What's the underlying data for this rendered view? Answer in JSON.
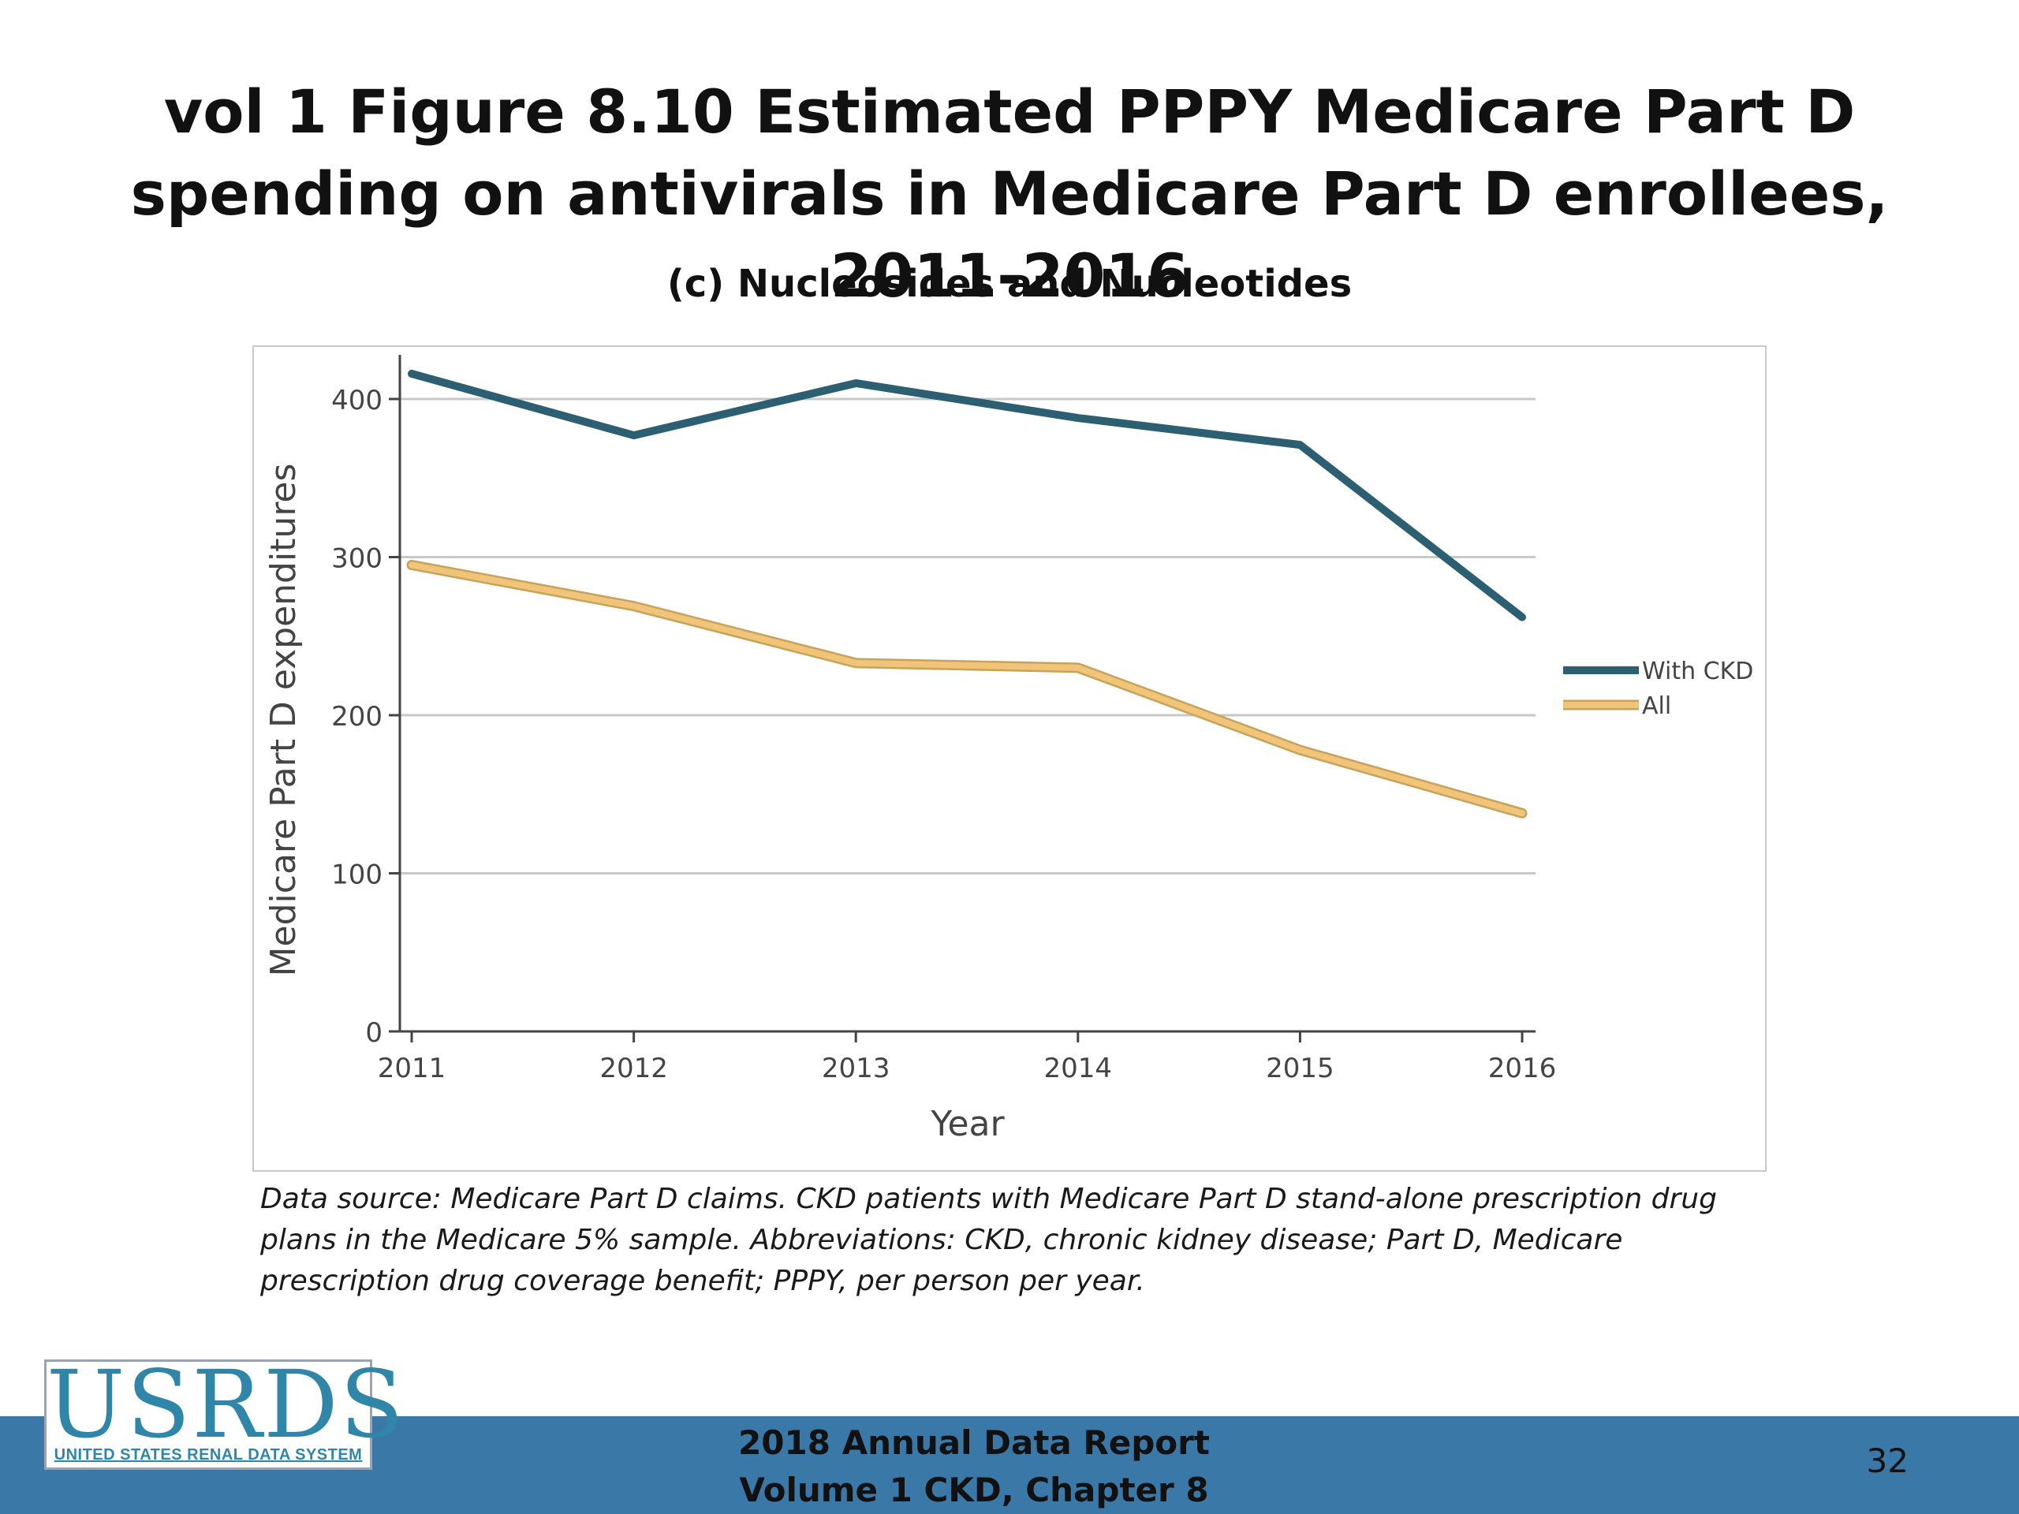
{
  "slide": {
    "title": "vol 1 Figure 8.10 Estimated PPPY Medicare Part D spending on antivirals in Medicare Part D enrollees, 2011-2016",
    "caption": "Data source: Medicare Part D claims. CKD patients with Medicare Part D stand-alone prescription drug plans in the Medicare 5% sample. Abbreviations: CKD, chronic kidney disease; Part D, Medicare prescription drug coverage benefit; PPPY, per person per year.",
    "footer_line1": "2018 Annual Data Report",
    "footer_line2": "Volume 1 CKD, Chapter 8",
    "page_number": "32",
    "logo_text": "USRDS",
    "logo_subtext": "UNITED STATES RENAL DATA SYSTEM"
  },
  "colors": {
    "with_ckd": "#2d5f73",
    "all": "#f0c57a",
    "footer_band": "#3a78a7",
    "gridline": "#c8c8c8"
  },
  "chart_data": {
    "type": "line",
    "title": "(c) Nucleosides and Nucleotides",
    "xlabel": "Year",
    "ylabel": "Medicare Part D expenditures",
    "x": [
      "2011",
      "2012",
      "2013",
      "2014",
      "2015",
      "2016"
    ],
    "ylim": [
      0,
      400
    ],
    "yticks": [
      0,
      100,
      200,
      300,
      400
    ],
    "grid": true,
    "legend_position": "right",
    "series": [
      {
        "name": "With CKD",
        "values": [
          416,
          377,
          410,
          388,
          371,
          262
        ]
      },
      {
        "name": "All",
        "values": [
          295,
          269,
          233,
          230,
          178,
          138
        ]
      }
    ]
  }
}
